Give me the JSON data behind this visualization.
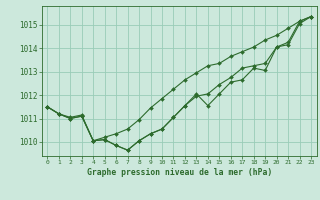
{
  "background_color": "#cce8dc",
  "grid_color": "#99ccb8",
  "line_color": "#2d6b2d",
  "xlabel": "Graphe pression niveau de la mer (hPa)",
  "xlim": [
    -0.5,
    23.5
  ],
  "ylim": [
    1009.4,
    1015.8
  ],
  "yticks": [
    1010,
    1011,
    1012,
    1013,
    1014,
    1015
  ],
  "xticks": [
    0,
    1,
    2,
    3,
    4,
    5,
    6,
    7,
    8,
    9,
    10,
    11,
    12,
    13,
    14,
    15,
    16,
    17,
    18,
    19,
    20,
    21,
    22,
    23
  ],
  "series": [
    [
      1011.5,
      1011.2,
      1011.0,
      1011.1,
      1010.05,
      1010.1,
      1009.85,
      1009.65,
      1010.05,
      1010.35,
      1010.55,
      1011.05,
      1011.55,
      1012.05,
      1011.55,
      1012.05,
      1012.55,
      1012.65,
      1013.15,
      1013.05,
      1014.05,
      1014.15,
      1015.05,
      1015.35
    ],
    [
      1011.5,
      1011.2,
      1011.0,
      1011.1,
      1010.05,
      1010.1,
      1009.85,
      1009.65,
      1010.05,
      1010.35,
      1010.55,
      1011.05,
      1011.55,
      1011.95,
      1012.05,
      1012.45,
      1012.75,
      1013.15,
      1013.25,
      1013.35,
      1014.05,
      1014.25,
      1015.15,
      1015.35
    ],
    [
      1011.5,
      1011.2,
      1011.05,
      1011.15,
      1010.05,
      1010.2,
      1010.35,
      1010.55,
      1010.95,
      1011.45,
      1011.85,
      1012.25,
      1012.65,
      1012.95,
      1013.25,
      1013.35,
      1013.65,
      1013.85,
      1014.05,
      1014.35,
      1014.55,
      1014.85,
      1015.15,
      1015.35
    ]
  ]
}
